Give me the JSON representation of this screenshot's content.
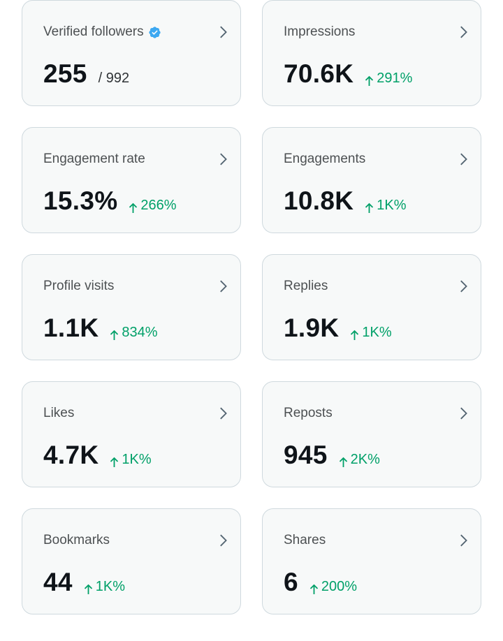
{
  "colors": {
    "card_background": "#f7f9f9",
    "card_border": "#cfd9de",
    "positive": "#00a068",
    "verified": "#1d9bf0",
    "chevron": "#536471",
    "text_primary": "#0f1419"
  },
  "metrics": [
    {
      "title": "Verified followers",
      "value": "255",
      "total": "/ 992",
      "verified_icon": "verified-badge-icon"
    },
    {
      "title": "Impressions",
      "value": "70.6K",
      "delta": "291%"
    },
    {
      "title": "Engagement rate",
      "value": "15.3%",
      "delta": "266%"
    },
    {
      "title": "Engagements",
      "value": "10.8K",
      "delta": "1K%"
    },
    {
      "title": "Profile visits",
      "value": "1.1K",
      "delta": "834%"
    },
    {
      "title": "Replies",
      "value": "1.9K",
      "delta": "1K%"
    },
    {
      "title": "Likes",
      "value": "4.7K",
      "delta": "1K%"
    },
    {
      "title": "Reposts",
      "value": "945",
      "delta": "2K%"
    },
    {
      "title": "Bookmarks",
      "value": "44",
      "delta": "1K%"
    },
    {
      "title": "Shares",
      "value": "6",
      "delta": "200%"
    }
  ]
}
